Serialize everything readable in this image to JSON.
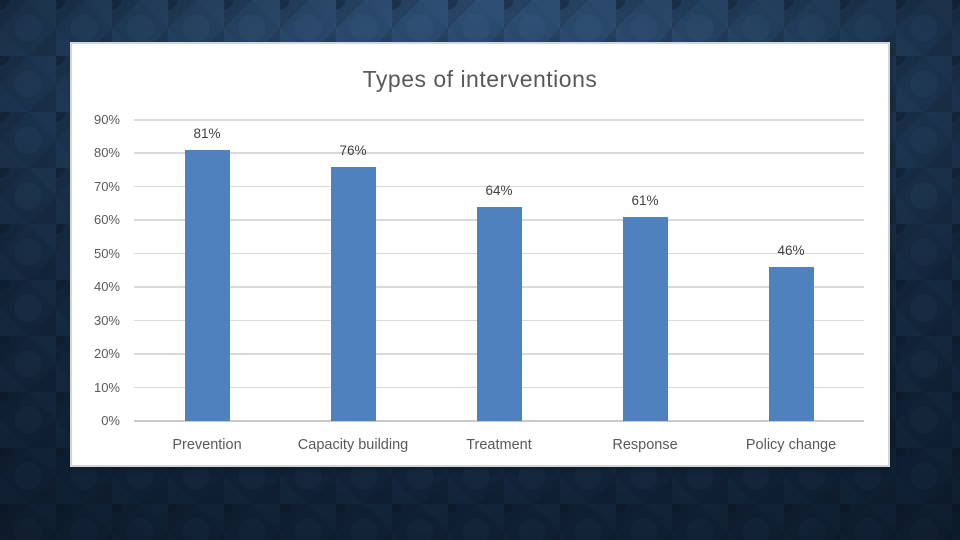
{
  "slide": {
    "background_color": "#13253A"
  },
  "panel": {
    "background_color": "#FFFFFF",
    "edge_color": "#D2D6D9"
  },
  "chart_data": {
    "type": "bar",
    "title": "Types of interventions",
    "categories": [
      "Prevention",
      "Capacity building",
      "Treatment",
      "Response",
      "Policy change"
    ],
    "values": [
      81,
      76,
      64,
      61,
      46
    ],
    "data_labels": [
      "81%",
      "76%",
      "64%",
      "61%",
      "46%"
    ],
    "yticks": [
      {
        "value": 0,
        "label": "0%"
      },
      {
        "value": 10,
        "label": "10%"
      },
      {
        "value": 20,
        "label": "20%"
      },
      {
        "value": 30,
        "label": "30%"
      },
      {
        "value": 40,
        "label": "40%"
      },
      {
        "value": 50,
        "label": "50%"
      },
      {
        "value": 60,
        "label": "60%"
      },
      {
        "value": 70,
        "label": "70%"
      },
      {
        "value": 80,
        "label": "80%"
      },
      {
        "value": 90,
        "label": "90%"
      }
    ],
    "ylim": [
      0,
      90
    ],
    "xlabel": "",
    "ylabel": "",
    "grid": true,
    "legend": "none",
    "bar_color": "#4E81BD",
    "gridline_color": "#D9D9D9",
    "axis_line_color": "#C7C9CB",
    "title_color": "#595959",
    "tick_label_color": "#595959",
    "category_label_color": "#595959",
    "data_label_color": "#3F3F3F"
  }
}
